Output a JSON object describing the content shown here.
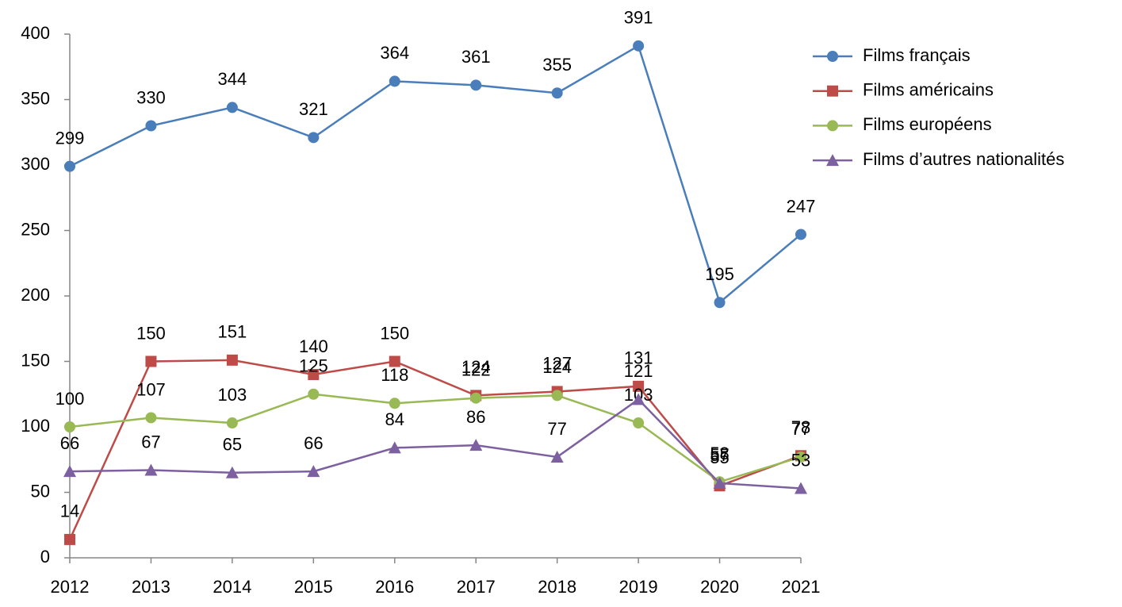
{
  "chart_data": {
    "type": "line",
    "categories": [
      "2012",
      "2013",
      "2014",
      "2015",
      "2016",
      "2017",
      "2018",
      "2019",
      "2020",
      "2021"
    ],
    "series": [
      {
        "name": "Films français",
        "color": "#4a7ebb",
        "marker": "circle",
        "values": [
          299,
          330,
          344,
          321,
          364,
          361,
          355,
          391,
          195,
          247
        ]
      },
      {
        "name": "Films américains",
        "color": "#be4b48",
        "marker": "square",
        "values": [
          14,
          150,
          151,
          140,
          150,
          124,
          127,
          131,
          55,
          78
        ]
      },
      {
        "name": "Films européens",
        "color": "#98b954",
        "marker": "circle",
        "values": [
          100,
          107,
          103,
          125,
          118,
          122,
          124,
          103,
          58,
          77
        ]
      },
      {
        "name": "Films d’autres nationalités",
        "color": "#7d60a0",
        "marker": "triangle",
        "values": [
          66,
          67,
          65,
          66,
          84,
          86,
          77,
          121,
          57,
          53
        ]
      }
    ],
    "ylim": [
      0,
      400
    ],
    "yticks": [
      0,
      50,
      100,
      150,
      200,
      250,
      300,
      350,
      400
    ],
    "grid": false,
    "legend": "right"
  }
}
